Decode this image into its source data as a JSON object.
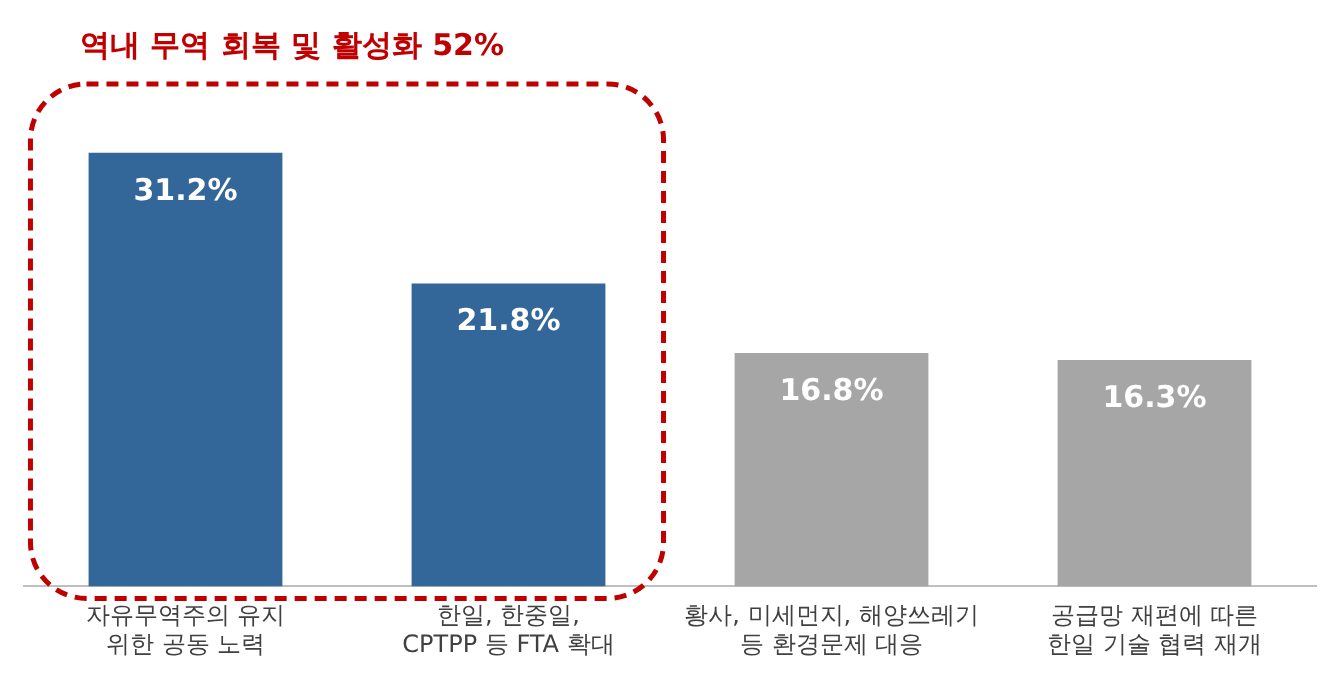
{
  "chart_data": {
    "type": "bar",
    "categories": [
      "자유무역주의 유지\n위한 공동 노력",
      "한일, 한중일,\nCPTPP 등 FTA 확대",
      "황사, 미세먼지, 해양쓰레기\n등 환경문제 대응",
      "공급망 재편에 따른\n한일 기술 협력 재개"
    ],
    "values": [
      31.2,
      21.8,
      16.8,
      16.3
    ],
    "colors": [
      "#336699",
      "#336699",
      "#a6a6a6",
      "#a6a6a6"
    ],
    "value_labels": [
      "31.2%",
      "21.8%",
      "16.8%",
      "16.3%"
    ],
    "annotations": [
      "역내 무역 회복 및 활성화 52%"
    ],
    "grid": false,
    "legend": false
  }
}
